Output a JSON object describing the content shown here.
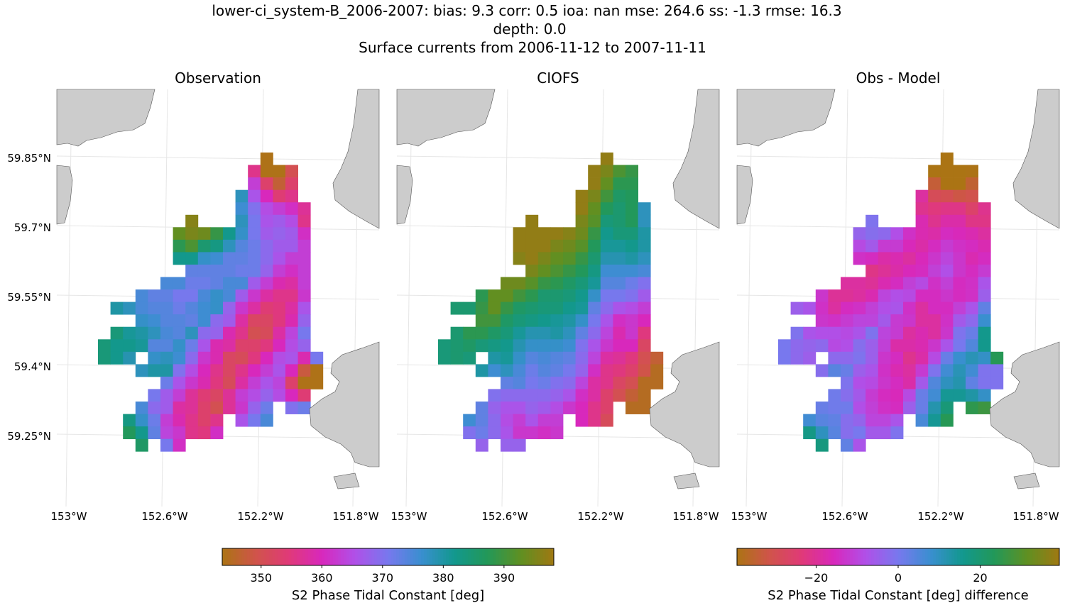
{
  "title_lines": [
    "lower-ci_system-B_2006-2007: bias: 9.3  corr: 0.5  ioa: nan  mse: 264.6  ss: -1.3  rmse: 16.3",
    "depth: 0.0",
    "Surface currents from 2006-11-12 to 2007-11-11"
  ],
  "chart_data": [
    {
      "type": "heatmap",
      "title": "Observation",
      "lat_ticks": [
        "59.85°N",
        "59.7°N",
        "59.55°N",
        "59.4°N",
        "59.25°N"
      ],
      "lon_ticks": [
        "153°W",
        "152.6°W",
        "152.2°W",
        "151.8°W"
      ],
      "colorbar": "phase",
      "grid": [
        [
          null,
          null,
          null,
          null,
          null,
          null,
          null,
          null,
          null,
          null,
          null,
          null,
          null,
          344
        ],
        [
          null,
          null,
          null,
          null,
          null,
          null,
          null,
          null,
          null,
          null,
          null,
          null,
          356,
          344,
          344,
          350
        ],
        [
          null,
          null,
          null,
          null,
          null,
          null,
          null,
          null,
          null,
          null,
          null,
          null,
          363,
          353,
          347,
          353
        ],
        [
          null,
          null,
          null,
          null,
          null,
          null,
          null,
          null,
          null,
          null,
          null,
          378,
          366,
          360,
          354,
          356
        ],
        [
          null,
          null,
          null,
          null,
          null,
          null,
          null,
          null,
          null,
          null,
          null,
          376,
          370,
          365,
          363,
          361,
          357
        ],
        [
          null,
          null,
          null,
          null,
          null,
          null,
          null,
          396,
          null,
          null,
          null,
          378,
          371,
          366,
          367,
          365,
          356
        ],
        [
          null,
          null,
          null,
          null,
          null,
          null,
          393,
          395,
          394,
          389,
          382,
          377,
          371,
          367,
          368,
          367,
          361
        ],
        [
          null,
          null,
          null,
          null,
          null,
          null,
          388,
          391,
          385,
          383,
          378,
          374,
          372,
          369,
          367,
          367,
          363
        ],
        [
          null,
          null,
          null,
          null,
          null,
          null,
          382,
          382,
          377,
          376,
          373,
          373,
          372,
          369,
          366,
          363,
          363
        ],
        [
          null,
          null,
          null,
          null,
          null,
          null,
          null,
          373,
          373,
          373,
          373,
          372,
          372,
          368,
          363,
          361,
          363
        ],
        [
          null,
          null,
          null,
          null,
          null,
          375,
          375,
          372,
          372,
          373,
          375,
          375,
          367,
          363,
          359,
          358,
          363
        ],
        [
          null,
          null,
          null,
          375,
          373,
          373,
          371,
          371,
          375,
          377,
          375,
          367,
          362,
          358,
          356,
          356,
          362
        ],
        [
          null,
          380,
          378,
          375,
          374,
          374,
          372,
          374,
          376,
          377,
          368,
          362,
          358,
          354,
          355,
          358,
          366
        ],
        [
          null,
          null,
          null,
          377,
          376,
          374,
          374,
          373,
          376,
          369,
          367,
          358,
          352,
          352,
          355,
          359,
          368
        ],
        [
          null,
          384,
          381,
          380,
          378,
          375,
          374,
          378,
          369,
          368,
          359,
          356,
          350,
          351,
          358,
          364,
          371
        ],
        [
          384,
          382,
          382,
          381,
          374,
          374,
          377,
          372,
          366,
          359,
          358,
          353,
          353,
          355,
          360,
          365,
          368
        ],
        [
          384,
          382,
          379,
          null,
          377,
          378,
          376,
          369,
          362,
          359,
          352,
          351,
          355,
          360,
          365,
          366,
          359,
          371
        ],
        [
          null,
          null,
          null,
          378,
          380,
          380,
          370,
          365,
          360,
          356,
          352,
          356,
          360,
          363,
          366,
          360,
          348,
          344
        ],
        [
          null,
          null,
          null,
          null,
          null,
          372,
          366,
          362,
          359,
          355,
          351,
          358,
          363,
          366,
          364,
          353,
          344,
          344
        ],
        [
          null,
          null,
          null,
          null,
          371,
          367,
          363,
          357,
          354,
          352,
          357,
          363,
          365,
          368,
          365,
          360,
          354
        ],
        [
          null,
          null,
          null,
          375,
          369,
          367,
          358,
          357,
          353,
          350,
          357,
          362,
          368,
          372,
          null,
          370,
          372
        ],
        [
          null,
          null,
          383,
          377,
          372,
          363,
          359,
          356,
          353,
          356,
          null,
          366,
          371,
          375
        ],
        [
          null,
          null,
          387,
          382,
          373,
          364,
          362,
          356,
          355,
          361
        ],
        [
          null,
          null,
          null,
          386,
          null,
          371,
          361
        ]
      ]
    },
    {
      "type": "heatmap",
      "title": "CIOFS",
      "lat_ticks": [
        "59.85°N",
        "59.7°N",
        "59.55°N",
        "59.4°N",
        "59.25°N"
      ],
      "lon_ticks": [
        "153°W",
        "152.6°W",
        "152.2°W",
        "151.8°W"
      ],
      "colorbar": "phase",
      "grid": [
        [
          null,
          null,
          null,
          null,
          null,
          null,
          null,
          null,
          null,
          null,
          null,
          null,
          null,
          397
        ],
        [
          null,
          null,
          null,
          null,
          null,
          null,
          null,
          null,
          null,
          null,
          null,
          null,
          397,
          395,
          391,
          389
        ],
        [
          null,
          null,
          null,
          null,
          null,
          null,
          null,
          null,
          null,
          null,
          null,
          null,
          397,
          393,
          388,
          388
        ],
        [
          null,
          null,
          null,
          null,
          null,
          null,
          null,
          null,
          null,
          null,
          null,
          397,
          395,
          390,
          386,
          387
        ],
        [
          null,
          null,
          null,
          null,
          null,
          null,
          null,
          null,
          null,
          null,
          null,
          397,
          393,
          387,
          385,
          387,
          378
        ],
        [
          null,
          null,
          null,
          null,
          null,
          null,
          null,
          397,
          null,
          null,
          null,
          395,
          392,
          384,
          385,
          387,
          378
        ],
        [
          null,
          null,
          null,
          null,
          null,
          null,
          397,
          397,
          397,
          397,
          396,
          394,
          389,
          382,
          384,
          384,
          380
        ],
        [
          null,
          null,
          null,
          null,
          null,
          null,
          397,
          397,
          397,
          395,
          394,
          392,
          387,
          381,
          381,
          382,
          380
        ],
        [
          null,
          null,
          null,
          null,
          null,
          null,
          396,
          397,
          395,
          393,
          392,
          389,
          385,
          379,
          379,
          380,
          378
        ],
        [
          null,
          null,
          null,
          null,
          null,
          null,
          null,
          395,
          393,
          391,
          389,
          387,
          383,
          376,
          376,
          376,
          375
        ],
        [
          null,
          null,
          null,
          null,
          null,
          394,
          394,
          392,
          389,
          388,
          386,
          384,
          381,
          374,
          374,
          372,
          370
        ],
        [
          null,
          null,
          null,
          388,
          393,
          393,
          390,
          388,
          385,
          385,
          384,
          382,
          377,
          371,
          371,
          370,
          367
        ],
        [
          null,
          385,
          385,
          389,
          393,
          389,
          386,
          385,
          384,
          384,
          382,
          381,
          373,
          369,
          366,
          365,
          363
        ],
        [
          null,
          null,
          null,
          390,
          390,
          386,
          384,
          383,
          382,
          381,
          380,
          377,
          371,
          366,
          361,
          362,
          360
        ],
        [
          null,
          385,
          388,
          388,
          386,
          384,
          381,
          379,
          379,
          380,
          378,
          373,
          369,
          364,
          359,
          362,
          355
        ],
        [
          384,
          385,
          386,
          384,
          383,
          382,
          379,
          377,
          377,
          377,
          376,
          370,
          366,
          362,
          360,
          360,
          352
        ],
        [
          384,
          385,
          384,
          null,
          380,
          381,
          377,
          374,
          375,
          374,
          373,
          369,
          364,
          358,
          357,
          355,
          350,
          347
        ],
        [
          null,
          null,
          null,
          380,
          376,
          378,
          375,
          372,
          374,
          373,
          371,
          368,
          361,
          356,
          355,
          353,
          349,
          345
        ],
        [
          null,
          null,
          null,
          null,
          null,
          373,
          374,
          371,
          372,
          370,
          369,
          364,
          358,
          356,
          352,
          350,
          345,
          345
        ],
        [
          null,
          null,
          null,
          null,
          370,
          369,
          369,
          369,
          369,
          368,
          366,
          361,
          358,
          353,
          350,
          347,
          345
        ],
        [
          null,
          null,
          null,
          373,
          368,
          366,
          366,
          368,
          367,
          365,
          362,
          360,
          356,
          353,
          null,
          345,
          345
        ],
        [
          null,
          null,
          376,
          373,
          369,
          365,
          363,
          366,
          363,
          363,
          null,
          360,
          356,
          351
        ],
        [
          null,
          null,
          370,
          372,
          369,
          366,
          362,
          362,
          361,
          362
        ],
        [
          null,
          null,
          null,
          368,
          null,
          368,
          368
        ]
      ]
    },
    {
      "type": "heatmap",
      "title": "Obs - Model",
      "lat_ticks": [
        "59.85°N",
        "59.7°N",
        "59.55°N",
        "59.4°N",
        "59.25°N"
      ],
      "lon_ticks": [
        "153°W",
        "152.6°W",
        "152.2°W",
        "151.8°W"
      ],
      "colorbar": "difference",
      "grid_definition": "Observation minus CIOFS"
    }
  ],
  "colorbars": {
    "phase": {
      "label": "S2 Phase Tidal Constant [deg]",
      "ticks": [
        "350",
        "360",
        "370",
        "380",
        "390"
      ],
      "range": [
        343.6,
        398.2
      ]
    },
    "difference": {
      "label": "S2 Phase Tidal Constant [deg] difference",
      "ticks": [
        "−20",
        "0",
        "20"
      ],
      "range": [
        -39.3,
        39.3
      ]
    }
  },
  "colors": {
    "land": "#cccccc",
    "gridline": "#e6e6e6"
  }
}
